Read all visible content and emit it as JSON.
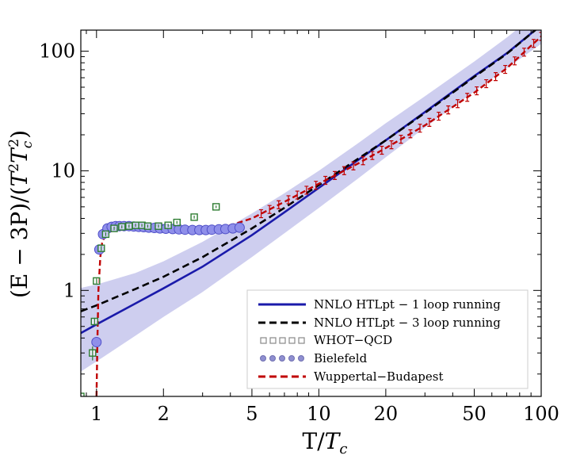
{
  "chart_data": {
    "type": "line",
    "xscale": "log",
    "yscale": "log",
    "xlim": [
      0.85,
      100
    ],
    "ylim": [
      0.13,
      150
    ],
    "xlabel_main": "T/",
    "xlabel_sym": "T",
    "xlabel_sub": "c",
    "ylabel": {
      "a": "(E − 3P)/(",
      "b": "T",
      "c": "2",
      "d": "T",
      "e": "c",
      "f": "2",
      "g": ")"
    },
    "x_ticks": [
      {
        "value": 1,
        "label": "1"
      },
      {
        "value": 2,
        "label": "2"
      },
      {
        "value": 5,
        "label": "5"
      },
      {
        "value": 10,
        "label": "10"
      },
      {
        "value": 20,
        "label": "20"
      },
      {
        "value": 50,
        "label": "50"
      },
      {
        "value": 100,
        "label": "100"
      }
    ],
    "y_ticks": [
      {
        "value": 1,
        "label": "1"
      },
      {
        "value": 10,
        "label": "10"
      },
      {
        "value": 100,
        "label": "100"
      }
    ],
    "legend_position": "bottom-right",
    "colors": {
      "band": "#c5c5ec",
      "htl1": "#1a1aaa",
      "htl3": "#000000",
      "whot": "#2e7d32",
      "bielefeld_fill": "#8f8fea",
      "bielefeld_stroke": "#5050c8",
      "wb": "#c00000"
    },
    "band": {
      "name": "NNLO HTLpt uncertainty band",
      "x": [
        0.85,
        1.0,
        1.5,
        2.0,
        3.0,
        5.0,
        7.0,
        10.0,
        15.0,
        20.0,
        30.0,
        50.0,
        70.0,
        100.0
      ],
      "lower": [
        0.21,
        0.255,
        0.42,
        0.6,
        0.97,
        1.9,
        3.0,
        4.9,
        8.6,
        13.0,
        23.0,
        46.0,
        72.0,
        115.0
      ],
      "upper": [
        1.05,
        1.12,
        1.4,
        1.75,
        2.55,
        4.4,
        6.5,
        10.0,
        17.0,
        25.0,
        42.0,
        82.0,
        130.0,
        220.0
      ]
    },
    "series": [
      {
        "name": "NNLO HTLpt − 1 loop running",
        "style": "solid",
        "x": [
          0.85,
          1.0,
          1.5,
          2.0,
          3.0,
          5.0,
          7.0,
          10.0,
          15.0,
          20.0,
          30.0,
          50.0,
          70.0,
          100.0
        ],
        "y": [
          0.44,
          0.52,
          0.78,
          1.04,
          1.58,
          2.9,
          4.5,
          7.2,
          12.3,
          18.0,
          31.0,
          62.0,
          96.0,
          165.0
        ]
      },
      {
        "name": "NNLO HTLpt − 3 loop running",
        "style": "dashed",
        "x": [
          0.85,
          1.0,
          1.5,
          2.0,
          3.0,
          5.0,
          7.0,
          10.0,
          15.0,
          20.0,
          30.0,
          50.0,
          70.0,
          100.0
        ],
        "y": [
          0.67,
          0.75,
          1.03,
          1.3,
          1.9,
          3.3,
          4.9,
          7.6,
          12.6,
          18.0,
          30.5,
          61.0,
          95.0,
          165.0
        ]
      },
      {
        "name": "WHOT−QCD",
        "style": "squares",
        "x": [
          0.85,
          0.96,
          0.98,
          1.0,
          1.05,
          1.1,
          1.2,
          1.3,
          1.4,
          1.5,
          1.6,
          1.7,
          1.9,
          2.1,
          2.3,
          2.75,
          3.45
        ],
        "y": [
          0.13,
          0.3,
          0.55,
          1.2,
          2.25,
          2.95,
          3.3,
          3.4,
          3.45,
          3.5,
          3.5,
          3.45,
          3.45,
          3.5,
          3.7,
          4.1,
          5.0
        ],
        "err": [
          0.01,
          0.04,
          0.04,
          0.06,
          0.1,
          0.1,
          0.1,
          0.1,
          0.1,
          0.1,
          0.1,
          0.1,
          0.1,
          0.1,
          0.1,
          0.12,
          0.12
        ]
      },
      {
        "name": "Bielefeld",
        "style": "circles",
        "x": [
          1.0,
          1.03,
          1.07,
          1.12,
          1.17,
          1.22,
          1.27,
          1.33,
          1.4,
          1.47,
          1.55,
          1.63,
          1.72,
          1.82,
          1.93,
          2.05,
          2.2,
          2.35,
          2.5,
          2.7,
          2.9,
          3.1,
          3.3,
          3.55,
          3.8,
          4.1,
          4.4
        ],
        "y": [
          0.37,
          2.2,
          2.95,
          3.3,
          3.4,
          3.45,
          3.45,
          3.45,
          3.45,
          3.42,
          3.4,
          3.38,
          3.35,
          3.33,
          3.3,
          3.28,
          3.26,
          3.24,
          3.22,
          3.2,
          3.2,
          3.2,
          3.22,
          3.24,
          3.26,
          3.3,
          3.35
        ]
      },
      {
        "name": "Wuppertal−Budapest",
        "style": "dashed",
        "x": [
          1.0,
          1.01,
          1.02,
          1.04,
          1.06,
          1.09,
          1.13,
          1.2,
          1.3,
          1.5,
          1.8,
          2.2,
          2.7,
          3.3,
          4.0,
          5.0,
          7.0,
          10.0,
          15.0,
          20.0,
          30.0,
          50.0,
          70.0,
          100.0
        ],
        "y": [
          0.13,
          0.4,
          1.0,
          1.9,
          2.5,
          2.85,
          3.05,
          3.2,
          3.3,
          3.33,
          3.3,
          3.25,
          3.22,
          3.3,
          3.5,
          4.0,
          5.5,
          7.8,
          11.5,
          15.5,
          24.0,
          45.0,
          72.0,
          133.0
        ],
        "err_points_x": [
          5.5,
          6.0,
          6.6,
          7.3,
          8.0,
          8.8,
          9.7,
          10.7,
          11.8,
          13.0,
          14.3,
          15.8,
          17.4,
          19.2,
          21.2,
          23.4,
          25.8,
          28.5,
          31.4,
          34.6,
          38.2,
          42.1,
          46.5,
          51.3,
          56.6,
          62.4,
          68.9,
          76.0,
          83.8,
          92.5,
          100.0
        ]
      }
    ],
    "legend": [
      {
        "label": "NNLO HTLpt − 1 loop running",
        "marker": "solid"
      },
      {
        "label": "NNLO HTLpt − 3 loop running",
        "marker": "dashed"
      },
      {
        "label": "WHOT−QCD",
        "marker": "squares"
      },
      {
        "label": "Bielefeld",
        "marker": "circles"
      },
      {
        "label": "Wuppertal−Budapest",
        "marker": "red-dashed"
      }
    ]
  }
}
